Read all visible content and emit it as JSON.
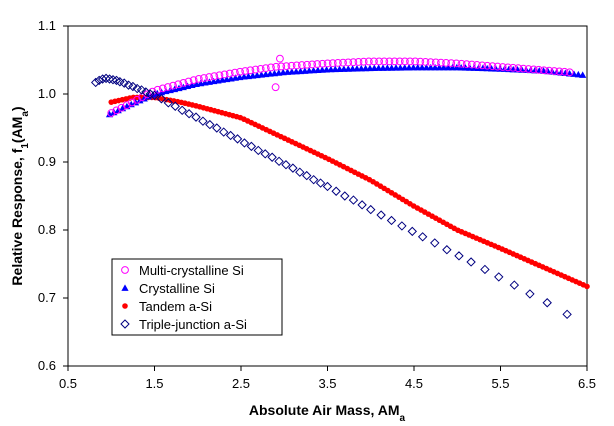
{
  "chart_data": {
    "type": "scatter",
    "xlabel": "Absolute Air Mass, AM",
    "xlabel_sub": "a",
    "ylabel": "Relative Response, f",
    "ylabel_sub1": "1",
    "ylabel_mid": "(AM",
    "ylabel_sub2": "a",
    "ylabel_end": ")",
    "xlim": [
      0.5,
      6.5
    ],
    "ylim": [
      0.6,
      1.1
    ],
    "xticks": [
      "0.5",
      "1.5",
      "2.5",
      "3.5",
      "4.5",
      "5.5",
      "6.5"
    ],
    "yticks": [
      "0.6",
      "0.7",
      "0.8",
      "0.9",
      "1.0",
      "1.1"
    ],
    "grid": false,
    "legend_position": "bottom-left",
    "series": [
      {
        "name": "Multi-crystalline Si",
        "marker": "circle-open",
        "color": "#ff00ff",
        "x_start": 1.0,
        "x_end": 6.3,
        "n": 90,
        "points": [
          [
            1.0,
            0.972
          ],
          [
            1.2,
            0.985
          ],
          [
            1.5,
            1.005
          ],
          [
            2.0,
            1.022
          ],
          [
            2.5,
            1.033
          ],
          [
            2.9,
            1.04
          ],
          [
            3.5,
            1.045
          ],
          [
            4.0,
            1.048
          ],
          [
            4.5,
            1.048
          ],
          [
            5.0,
            1.045
          ],
          [
            5.5,
            1.04
          ],
          [
            6.0,
            1.035
          ],
          [
            6.3,
            1.032
          ]
        ],
        "outliers": [
          [
            2.9,
            1.01
          ],
          [
            2.95,
            1.052
          ]
        ]
      },
      {
        "name": "Crystalline Si",
        "marker": "triangle",
        "color": "#0000ff",
        "x_start": 0.98,
        "x_end": 6.45,
        "n": 110,
        "points": [
          [
            0.98,
            0.97
          ],
          [
            1.2,
            0.983
          ],
          [
            1.5,
            1.0
          ],
          [
            2.0,
            1.015
          ],
          [
            2.5,
            1.025
          ],
          [
            3.0,
            1.032
          ],
          [
            3.5,
            1.036
          ],
          [
            4.0,
            1.038
          ],
          [
            4.5,
            1.039
          ],
          [
            5.0,
            1.039
          ],
          [
            5.5,
            1.037
          ],
          [
            6.0,
            1.034
          ],
          [
            6.45,
            1.028
          ]
        ]
      },
      {
        "name": "Tandem a-Si",
        "marker": "circle-filled",
        "color": "#ff0000",
        "x_start": 1.0,
        "x_end": 6.5,
        "n": 130,
        "points": [
          [
            1.0,
            0.988
          ],
          [
            1.25,
            0.995
          ],
          [
            1.5,
            0.995
          ],
          [
            1.8,
            0.988
          ],
          [
            2.0,
            0.982
          ],
          [
            2.5,
            0.965
          ],
          [
            3.0,
            0.935
          ],
          [
            3.5,
            0.905
          ],
          [
            4.0,
            0.873
          ],
          [
            4.5,
            0.835
          ],
          [
            5.0,
            0.8
          ],
          [
            5.5,
            0.773
          ],
          [
            6.0,
            0.745
          ],
          [
            6.5,
            0.717
          ]
        ]
      },
      {
        "name": "Triple-junction a-Si",
        "marker": "diamond-open",
        "color": "#000080",
        "points": [
          [
            0.82,
            1.017
          ],
          [
            0.86,
            1.02
          ],
          [
            0.9,
            1.022
          ],
          [
            0.94,
            1.023
          ],
          [
            0.98,
            1.022
          ],
          [
            1.02,
            1.021
          ],
          [
            1.06,
            1.02
          ],
          [
            1.1,
            1.018
          ],
          [
            1.15,
            1.016
          ],
          [
            1.2,
            1.013
          ],
          [
            1.25,
            1.011
          ],
          [
            1.3,
            1.008
          ],
          [
            1.35,
            1.006
          ],
          [
            1.4,
            1.003
          ],
          [
            1.45,
            1.0
          ],
          [
            1.5,
            0.998
          ],
          [
            1.58,
            0.993
          ],
          [
            1.66,
            0.987
          ],
          [
            1.74,
            0.982
          ],
          [
            1.82,
            0.976
          ],
          [
            1.9,
            0.971
          ],
          [
            1.98,
            0.966
          ],
          [
            2.06,
            0.96
          ],
          [
            2.14,
            0.955
          ],
          [
            2.22,
            0.95
          ],
          [
            2.3,
            0.944
          ],
          [
            2.38,
            0.939
          ],
          [
            2.46,
            0.934
          ],
          [
            2.54,
            0.928
          ],
          [
            2.62,
            0.923
          ],
          [
            2.7,
            0.917
          ],
          [
            2.78,
            0.912
          ],
          [
            2.86,
            0.907
          ],
          [
            2.94,
            0.901
          ],
          [
            3.02,
            0.896
          ],
          [
            3.1,
            0.891
          ],
          [
            3.18,
            0.885
          ],
          [
            3.26,
            0.88
          ],
          [
            3.34,
            0.874
          ],
          [
            3.42,
            0.869
          ],
          [
            3.5,
            0.864
          ],
          [
            3.6,
            0.857
          ],
          [
            3.7,
            0.85
          ],
          [
            3.8,
            0.844
          ],
          [
            3.9,
            0.837
          ],
          [
            4.0,
            0.83
          ],
          [
            4.12,
            0.822
          ],
          [
            4.24,
            0.814
          ],
          [
            4.36,
            0.806
          ],
          [
            4.48,
            0.798
          ],
          [
            4.6,
            0.79
          ],
          [
            4.74,
            0.781
          ],
          [
            4.88,
            0.771
          ],
          [
            5.02,
            0.762
          ],
          [
            5.16,
            0.753
          ],
          [
            5.32,
            0.742
          ],
          [
            5.48,
            0.731
          ],
          [
            5.66,
            0.719
          ],
          [
            5.84,
            0.706
          ],
          [
            6.04,
            0.693
          ],
          [
            6.27,
            0.676
          ]
        ]
      }
    ]
  }
}
